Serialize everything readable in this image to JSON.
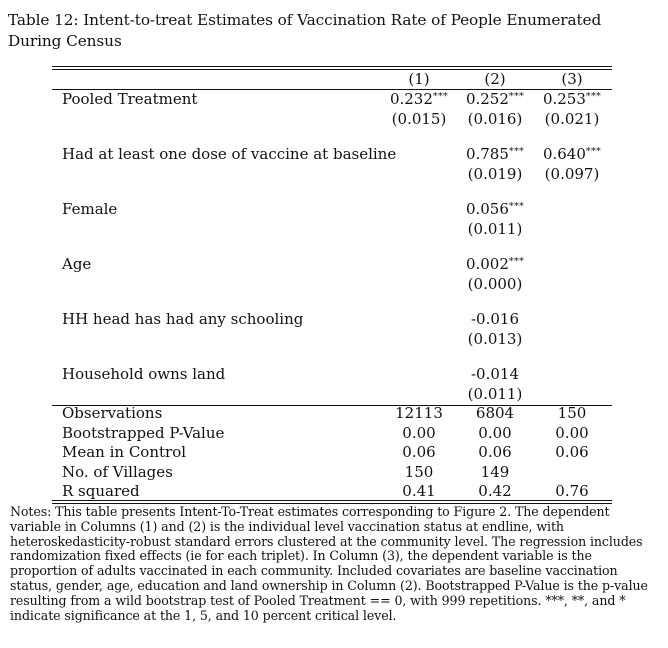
{
  "caption": "Table 12: Intent-to-treat Estimates of Vaccination Rate of People Enumerated During Census",
  "columns": [
    "(1)",
    "(2)",
    "(3)"
  ],
  "coef_rows": [
    {
      "label": "Pooled Treatment",
      "est": [
        {
          "v": "0.232",
          "s": "***"
        },
        {
          "v": "0.252",
          "s": "***"
        },
        {
          "v": "0.253",
          "s": "***"
        }
      ],
      "se": [
        "(0.015)",
        "(0.016)",
        "(0.021)"
      ]
    },
    {
      "label": "Had at least one dose of vaccine at baseline",
      "est": [
        {
          "v": "",
          "s": ""
        },
        {
          "v": "0.785",
          "s": "***"
        },
        {
          "v": "0.640",
          "s": "***"
        }
      ],
      "se": [
        "",
        "(0.019)",
        "(0.097)"
      ]
    },
    {
      "label": "Female",
      "est": [
        {
          "v": "",
          "s": ""
        },
        {
          "v": "0.056",
          "s": "***"
        },
        {
          "v": "",
          "s": ""
        }
      ],
      "se": [
        "",
        "(0.011)",
        ""
      ]
    },
    {
      "label": "Age",
      "est": [
        {
          "v": "",
          "s": ""
        },
        {
          "v": "0.002",
          "s": "***"
        },
        {
          "v": "",
          "s": ""
        }
      ],
      "se": [
        "",
        "(0.000)",
        ""
      ]
    },
    {
      "label": "HH head has had any schooling",
      "est": [
        {
          "v": "",
          "s": ""
        },
        {
          "v": "-0.016",
          "s": ""
        },
        {
          "v": "",
          "s": ""
        }
      ],
      "se": [
        "",
        "(0.013)",
        ""
      ]
    },
    {
      "label": "Household owns land",
      "est": [
        {
          "v": "",
          "s": ""
        },
        {
          "v": "-0.014",
          "s": ""
        },
        {
          "v": "",
          "s": ""
        }
      ],
      "se": [
        "",
        "(0.011)",
        ""
      ]
    }
  ],
  "stat_rows": [
    {
      "label": "Observations",
      "values": [
        "12113",
        "6804",
        "150"
      ]
    },
    {
      "label": "Bootstrapped P-Value",
      "values": [
        "0.00",
        "0.00",
        "0.00"
      ]
    },
    {
      "label": "Mean in Control",
      "values": [
        "0.06",
        "0.06",
        "0.06"
      ]
    },
    {
      "label": "No. of Villages",
      "values": [
        "150",
        "149",
        ""
      ]
    },
    {
      "label": "R squared",
      "values": [
        "0.41",
        "0.42",
        "0.76"
      ]
    }
  ],
  "notes": "Notes: This table presents Intent-To-Treat estimates corresponding to Figure 2. The dependent variable in Columns (1) and (2) is the individual level vaccination status at endline, with heteroskedasticity-robust standard errors clustered at the community level. The regression includes randomization fixed effects (ie for each triplet). In Column (3), the dependent variable is the proportion of adults vaccinated in each community. Included covariates are baseline vaccination status, gender, age, education and land ownership in Column (2). Bootstrapped P-Value is the p-value resulting from a wild bootstrap test of Pooled Treatment == 0, with 999 repetitions. ***, **, and * indicate significance at the 1, 5, and 10 percent critical level."
}
